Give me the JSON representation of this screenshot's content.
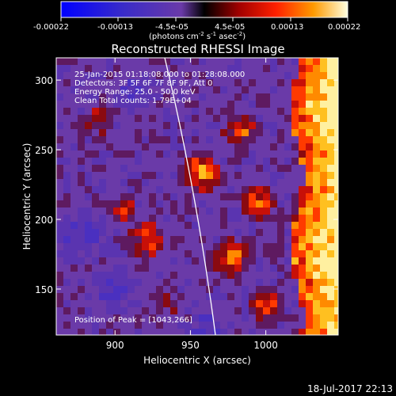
{
  "colorbar": {
    "ticks": [
      "-0.00022",
      "-0.00013",
      "-4.5e-05",
      "4.5e-05",
      "0.00013",
      "0.00022"
    ],
    "unit_main": "(photons cm",
    "unit_exp1": "-2",
    "unit_mid1": " s",
    "unit_exp2": "-1",
    "unit_mid2": " asec",
    "unit_exp3": "-2",
    "unit_end": ")"
  },
  "plot": {
    "title": "Reconstructed RHESSI Image",
    "xlabel": "Heliocentric X (arcsec)",
    "ylabel": "Heliocentric Y (arcsec)",
    "x_ticks": [
      {
        "label": "900",
        "value": 900
      },
      {
        "label": "950",
        "value": 950
      },
      {
        "label": "1000",
        "value": 1000
      }
    ],
    "y_ticks": [
      {
        "label": "300",
        "value": 300
      },
      {
        "label": "250",
        "value": 250
      },
      {
        "label": "200",
        "value": 200
      },
      {
        "label": "150",
        "value": 150
      }
    ],
    "xrange": [
      861,
      1048
    ],
    "yrange": [
      117,
      316
    ],
    "info": [
      "25-Jan-2015 01:18:08.000 to 01:28:08.000",
      "Detectors: 3F 5F 6F 7F 8F 9F, Att 0",
      "Energy Range: 25.0 - 50.0 keV",
      "Clean     Total counts: 1.79E+04"
    ],
    "peak_text": "Position of Peak = [1043,266]",
    "colors": {
      "low": "#2020ff",
      "bg": "#6a3aa8",
      "mid": "#cc1010",
      "high": "#ffcc20"
    }
  },
  "footer": {
    "timestamp": "18-Jul-2017 22:13"
  }
}
